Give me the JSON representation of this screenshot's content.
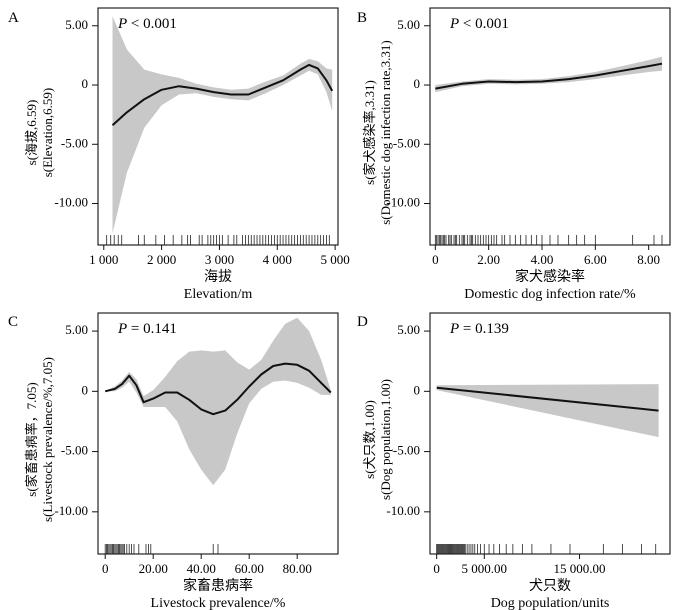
{
  "chart_data": [
    {
      "type": "line",
      "panel_label": "A",
      "p_text_prefix": "P",
      "p_text_value": " < 0.001",
      "ylabel_line1": "s(海拔,6.59)",
      "ylabel_line2": "s(Elevation,6.59)",
      "xlabel_cn": "海拔",
      "xlabel_en": "Elevation/m",
      "x_ticks": [
        1000,
        2000,
        3000,
        4000,
        5000
      ],
      "x_tick_labels": [
        "1 000",
        "2 000",
        "3 000",
        "4 000",
        "5 000"
      ],
      "xlim": [
        900,
        5050
      ],
      "y_ticks": [
        5,
        0,
        -5,
        -10
      ],
      "y_tick_labels": [
        "5.00",
        "0",
        "-5.00",
        "-10.00"
      ],
      "ylim": [
        -13.5,
        6.5
      ],
      "series": [
        {
          "x": [
            1150,
            1400,
            1700,
            2000,
            2300,
            2600,
            2900,
            3200,
            3500,
            3800,
            4100,
            4400,
            4550,
            4700,
            4850,
            4950
          ],
          "y": [
            -3.4,
            -2.3,
            -1.2,
            -0.4,
            -0.1,
            -0.3,
            -0.6,
            -0.8,
            -0.8,
            -0.2,
            0.4,
            1.3,
            1.7,
            1.4,
            0.4,
            -0.5
          ],
          "lower": [
            -12.5,
            -7.4,
            -3.6,
            -1.7,
            -0.8,
            -0.7,
            -1.0,
            -1.2,
            -1.3,
            -0.7,
            0.0,
            0.8,
            1.2,
            0.9,
            -0.6,
            -2.2
          ],
          "upper": [
            5.8,
            3.0,
            1.3,
            0.9,
            0.6,
            0.1,
            -0.2,
            -0.4,
            -0.3,
            0.3,
            0.8,
            1.8,
            2.2,
            2.0,
            1.4,
            1.3
          ]
        }
      ],
      "rug": [
        1050,
        1120,
        1180,
        1250,
        1310,
        1600,
        1700,
        1900,
        2050,
        2200,
        2350,
        2450,
        2500,
        2650,
        2700,
        2800,
        2850,
        2900,
        2950,
        3000,
        3050,
        3150,
        3250,
        3300,
        3400,
        3450,
        3500,
        3550,
        3600,
        3650,
        3700,
        3750,
        3800,
        3850,
        3900,
        3950,
        4000,
        4050,
        4100,
        4150,
        4200,
        4250,
        4300,
        4350,
        4400,
        4450,
        4500,
        4550,
        4600,
        4650,
        4700,
        4750,
        4800,
        4850,
        4900
      ]
    },
    {
      "type": "line",
      "panel_label": "B",
      "p_text_prefix": "P",
      "p_text_value": " < 0.001",
      "ylabel_line1": "s(家犬感染率,3.31)",
      "ylabel_line2": "s(Domestic dog infection rate,3.31)",
      "xlabel_cn": "家犬感染率",
      "xlabel_en": "Domestic dog infection rate/%",
      "x_ticks": [
        0,
        2,
        4,
        6,
        8
      ],
      "x_tick_labels": [
        "0",
        "2.00",
        "4.00",
        "6.00",
        "8.00"
      ],
      "xlim": [
        -0.2,
        8.8
      ],
      "y_ticks": [
        5,
        0,
        -5,
        -10
      ],
      "y_tick_labels": [
        "5.00",
        "0",
        "-5.00",
        "-10.00"
      ],
      "ylim": [
        -13.5,
        6.5
      ],
      "series": [
        {
          "x": [
            0,
            1,
            2,
            3,
            4,
            5,
            6,
            7,
            8,
            8.5
          ],
          "y": [
            -0.3,
            0.1,
            0.3,
            0.25,
            0.3,
            0.5,
            0.8,
            1.2,
            1.6,
            1.8
          ],
          "lower": [
            -0.6,
            -0.1,
            0.1,
            0.05,
            0.1,
            0.25,
            0.5,
            0.8,
            1.1,
            1.2
          ],
          "upper": [
            0.0,
            0.3,
            0.5,
            0.45,
            0.5,
            0.75,
            1.1,
            1.6,
            2.1,
            2.4
          ]
        }
      ],
      "rug": [
        0.0,
        0.05,
        0.1,
        0.15,
        0.2,
        0.25,
        0.3,
        0.35,
        0.4,
        0.5,
        0.55,
        0.6,
        0.7,
        0.75,
        0.8,
        0.9,
        1.0,
        1.05,
        1.1,
        1.2,
        1.3,
        1.35,
        1.4,
        1.5,
        1.6,
        1.7,
        1.8,
        1.9,
        2.0,
        2.1,
        2.2,
        2.3,
        2.5,
        2.6,
        2.8,
        3.0,
        3.2,
        3.4,
        3.6,
        3.8,
        4.0,
        4.3,
        4.6,
        5.0,
        5.3,
        5.6,
        6.0,
        7.4,
        8.2,
        8.5
      ]
    },
    {
      "type": "line",
      "panel_label": "C",
      "p_text_prefix": "P",
      "p_text_value": " = 0.141",
      "ylabel_line1": "s(家畜患病率，7.05)",
      "ylabel_line2": "s(Livestock prevalence/%,7.05)",
      "xlabel_cn": "家畜患病率",
      "xlabel_en": "Livestock prevalence/%",
      "x_ticks": [
        0,
        20,
        40,
        60,
        80
      ],
      "x_tick_labels": [
        "0",
        "20.00",
        "40.00",
        "60.00",
        "80.00"
      ],
      "xlim": [
        -3,
        97
      ],
      "y_ticks": [
        5,
        0,
        -5,
        -10
      ],
      "y_tick_labels": [
        "5.00",
        "0",
        "-5.00",
        "-10.00"
      ],
      "ylim": [
        -13.5,
        6.5
      ],
      "series": [
        {
          "x": [
            0,
            4,
            7,
            10,
            13,
            16,
            20,
            25,
            30,
            35,
            40,
            45,
            50,
            55,
            60,
            65,
            70,
            75,
            80,
            85,
            90,
            94
          ],
          "y": [
            0.0,
            0.2,
            0.6,
            1.3,
            0.5,
            -0.9,
            -0.6,
            -0.1,
            -0.1,
            -0.7,
            -1.5,
            -1.9,
            -1.6,
            -0.7,
            0.4,
            1.4,
            2.1,
            2.3,
            2.2,
            1.7,
            0.7,
            -0.1
          ],
          "lower": [
            0.0,
            0.0,
            0.3,
            0.8,
            -0.1,
            -1.3,
            -1.3,
            -1.3,
            -2.5,
            -4.8,
            -6.5,
            -7.8,
            -6.5,
            -3.5,
            -1.0,
            0.2,
            0.8,
            0.9,
            0.7,
            0.3,
            -0.3,
            -0.3
          ],
          "upper": [
            0.0,
            0.4,
            0.9,
            1.6,
            1.0,
            -0.4,
            0.1,
            1.2,
            2.5,
            3.3,
            3.4,
            3.3,
            3.4,
            2.4,
            1.8,
            2.6,
            4.2,
            5.6,
            6.1,
            5.0,
            2.6,
            0.1
          ]
        }
      ],
      "rug": [
        0,
        0.5,
        1,
        1.5,
        2,
        2.5,
        3,
        3.5,
        4,
        4.5,
        5,
        5.5,
        6,
        6.5,
        7,
        7.5,
        8,
        9,
        10,
        11,
        12,
        14,
        17,
        18,
        19,
        45,
        47
      ]
    },
    {
      "type": "line",
      "panel_label": "D",
      "p_text_prefix": "P",
      "p_text_value": " = 0.139",
      "ylabel_line1": "s(犬只数,1.00)",
      "ylabel_line2": "s(Dog population,1.00)",
      "xlabel_cn": "犬只数",
      "xlabel_en": "Dog population/units",
      "x_ticks": [
        0,
        5000,
        15000
      ],
      "x_tick_labels": [
        "0",
        "5 000.00",
        "15 000.00"
      ],
      "xlim": [
        -700,
        24500
      ],
      "y_ticks": [
        5,
        0,
        -5,
        -10
      ],
      "y_tick_labels": [
        "5.00",
        "0",
        "-5.00",
        "-10.00"
      ],
      "ylim": [
        -13.5,
        6.5
      ],
      "series": [
        {
          "x": [
            0,
            23300
          ],
          "y": [
            0.3,
            -1.6
          ],
          "lower": [
            0.1,
            -3.8
          ],
          "upper": [
            0.5,
            0.6
          ]
        }
      ],
      "rug": [
        0,
        100,
        200,
        300,
        400,
        500,
        600,
        700,
        800,
        900,
        1000,
        1100,
        1200,
        1300,
        1400,
        1500,
        1600,
        1700,
        1800,
        1900,
        2000,
        2100,
        2200,
        2300,
        2400,
        2500,
        2600,
        2700,
        2800,
        2900,
        3000,
        3200,
        3400,
        3600,
        3800,
        4000,
        4300,
        4600,
        5000,
        5500,
        6000,
        6600,
        7300,
        8000,
        9000,
        10000,
        12000,
        14000,
        17500,
        19500,
        21500,
        23000
      ]
    }
  ]
}
